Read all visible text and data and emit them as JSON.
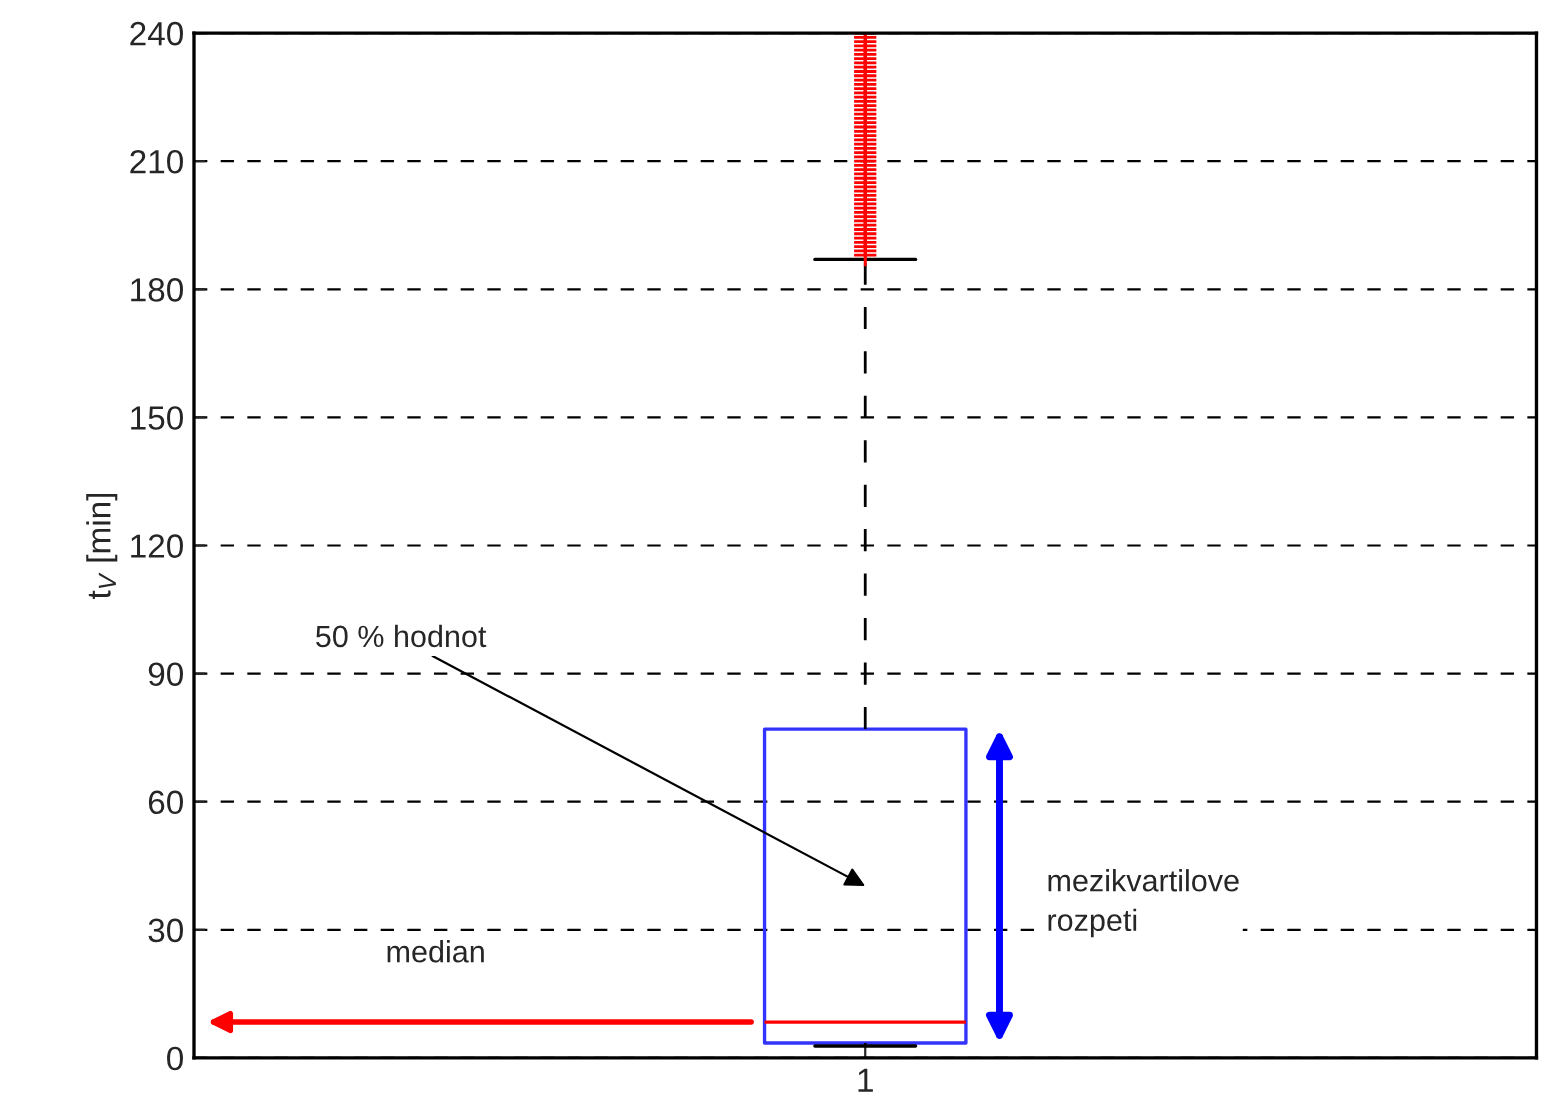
{
  "chart_data": {
    "type": "box",
    "ylabel": "t$_{V}$ [min]",
    "categories": [
      "1"
    ],
    "boxes": [
      {
        "low": 2.8,
        "q1": 3.5,
        "median": 8.4,
        "q3": 77,
        "high": 187,
        "outliers": [
          188,
          189,
          190,
          191,
          192,
          193,
          194,
          195,
          196,
          197,
          198,
          199,
          200,
          201,
          202,
          203,
          204,
          205,
          206,
          207,
          208,
          209,
          210,
          211,
          212,
          213,
          214,
          215,
          216,
          217,
          218,
          219,
          220,
          221,
          222,
          223,
          224,
          225,
          226,
          227,
          228,
          229,
          230,
          231,
          232,
          233,
          234,
          235,
          236,
          237,
          238,
          239,
          240
        ]
      }
    ],
    "ylim": [
      0,
      240
    ],
    "yticks": [
      0,
      30,
      60,
      90,
      120,
      150,
      180,
      210,
      240
    ],
    "grid": "y",
    "annotations": [
      "50 % hodnot",
      "mezikvartilove\nrozpeti",
      "median"
    ]
  }
}
